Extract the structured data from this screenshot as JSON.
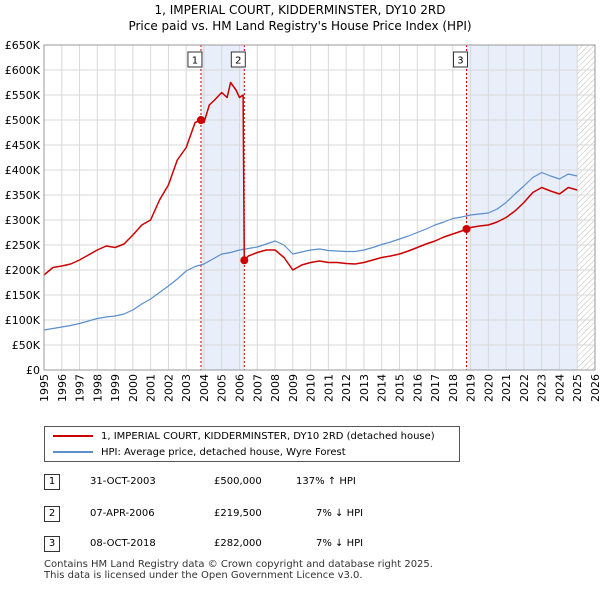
{
  "title_line1": "1, IMPERIAL COURT, KIDDERMINSTER, DY10 2RD",
  "title_line2": "Price paid vs. HM Land Registry's House Price Index (HPI)",
  "colors": {
    "price": "#cc0000",
    "hpi": "#5b8fcc",
    "shade": "#e8eefa",
    "grid": "#d8d8d8",
    "vline": "#cc0000"
  },
  "chart_data": {
    "type": "line",
    "title": "1, IMPERIAL COURT, KIDDERMINSTER, DY10 2RD — Price paid vs. HM Land Registry's House Price Index (HPI)",
    "xlabel": "",
    "ylabel": "",
    "xlim": [
      1995,
      2026
    ],
    "ylim": [
      0,
      650000
    ],
    "yticks": [
      0,
      50000,
      100000,
      150000,
      200000,
      250000,
      300000,
      350000,
      400000,
      450000,
      500000,
      550000,
      600000,
      650000
    ],
    "ytick_labels": [
      "£0",
      "£50K",
      "£100K",
      "£150K",
      "£200K",
      "£250K",
      "£300K",
      "£350K",
      "£400K",
      "£450K",
      "£500K",
      "£550K",
      "£600K",
      "£650K"
    ],
    "xticks": [
      1995,
      1996,
      1997,
      1998,
      1999,
      2000,
      2001,
      2002,
      2003,
      2004,
      2005,
      2006,
      2007,
      2008,
      2009,
      2010,
      2011,
      2012,
      2013,
      2014,
      2015,
      2016,
      2017,
      2018,
      2019,
      2020,
      2021,
      2022,
      2023,
      2024,
      2025,
      2026
    ],
    "shaded_ranges": [
      [
        2003.83,
        2006.27
      ],
      [
        2018.77,
        2025.0
      ]
    ],
    "future_hatch_from": 2025.0,
    "series": [
      {
        "name": "1, IMPERIAL COURT, KIDDERMINSTER, DY10 2RD (detached house)",
        "color": "#cc0000",
        "x": [
          1995.0,
          1995.5,
          1996.0,
          1996.5,
          1997.0,
          1997.5,
          1998.0,
          1998.5,
          1999.0,
          1999.5,
          2000.0,
          2000.5,
          2001.0,
          2001.5,
          2002.0,
          2002.5,
          2003.0,
          2003.5,
          2003.83,
          2004.0,
          2004.3,
          2004.6,
          2005.0,
          2005.3,
          2005.5,
          2005.8,
          2006.0,
          2006.2,
          2006.27,
          2006.5,
          2007.0,
          2007.5,
          2008.0,
          2008.5,
          2009.0,
          2009.5,
          2010.0,
          2010.5,
          2011.0,
          2011.5,
          2012.0,
          2012.5,
          2013.0,
          2013.5,
          2014.0,
          2014.5,
          2015.0,
          2015.5,
          2016.0,
          2016.5,
          2017.0,
          2017.5,
          2018.0,
          2018.5,
          2018.77,
          2019.0,
          2019.5,
          2020.0,
          2020.5,
          2021.0,
          2021.5,
          2022.0,
          2022.5,
          2023.0,
          2023.5,
          2024.0,
          2024.5,
          2025.0
        ],
        "values": [
          190000,
          205000,
          208000,
          212000,
          220000,
          230000,
          240000,
          248000,
          245000,
          252000,
          270000,
          290000,
          300000,
          340000,
          370000,
          420000,
          445000,
          495000,
          500000,
          495000,
          530000,
          540000,
          555000,
          545000,
          575000,
          560000,
          545000,
          550000,
          219500,
          228000,
          235000,
          240000,
          240000,
          225000,
          200000,
          210000,
          215000,
          218000,
          215000,
          215000,
          213000,
          212000,
          215000,
          220000,
          225000,
          228000,
          232000,
          238000,
          245000,
          252000,
          258000,
          266000,
          272000,
          278000,
          282000,
          285000,
          288000,
          290000,
          296000,
          305000,
          318000,
          335000,
          355000,
          365000,
          358000,
          352000,
          365000,
          360000
        ]
      },
      {
        "name": "HPI: Average price, detached house, Wyre Forest",
        "color": "#5b8fcc",
        "x": [
          1995.0,
          1995.5,
          1996.0,
          1996.5,
          1997.0,
          1997.5,
          1998.0,
          1998.5,
          1999.0,
          1999.5,
          2000.0,
          2000.5,
          2001.0,
          2001.5,
          2002.0,
          2002.5,
          2003.0,
          2003.5,
          2004.0,
          2004.5,
          2005.0,
          2005.5,
          2006.0,
          2006.5,
          2007.0,
          2007.5,
          2008.0,
          2008.5,
          2009.0,
          2009.5,
          2010.0,
          2010.5,
          2011.0,
          2011.5,
          2012.0,
          2012.5,
          2013.0,
          2013.5,
          2014.0,
          2014.5,
          2015.0,
          2015.5,
          2016.0,
          2016.5,
          2017.0,
          2017.5,
          2018.0,
          2018.5,
          2019.0,
          2019.5,
          2020.0,
          2020.5,
          2021.0,
          2021.5,
          2022.0,
          2022.5,
          2023.0,
          2023.5,
          2024.0,
          2024.5,
          2025.0
        ],
        "values": [
          80000,
          83000,
          86000,
          89000,
          93000,
          98000,
          103000,
          106000,
          108000,
          112000,
          120000,
          132000,
          142000,
          155000,
          168000,
          182000,
          198000,
          207000,
          212000,
          222000,
          232000,
          235000,
          240000,
          243000,
          246000,
          252000,
          258000,
          250000,
          232000,
          236000,
          240000,
          242000,
          239000,
          238000,
          237000,
          237000,
          240000,
          245000,
          251000,
          256000,
          262000,
          268000,
          275000,
          282000,
          290000,
          296000,
          303000,
          306000,
          310000,
          312000,
          314000,
          322000,
          335000,
          352000,
          368000,
          385000,
          395000,
          388000,
          382000,
          392000,
          388000
        ]
      }
    ],
    "annotations": [
      {
        "label": "1",
        "x": 2003.83,
        "value": 500000
      },
      {
        "label": "2",
        "x": 2006.27,
        "value": 219500
      },
      {
        "label": "3",
        "x": 2018.77,
        "value": 282000
      }
    ]
  },
  "legend": {
    "price_label": "1, IMPERIAL COURT, KIDDERMINSTER, DY10 2RD (detached house)",
    "hpi_label": "HPI: Average price, detached house, Wyre Forest"
  },
  "transactions": [
    {
      "num": "1",
      "date": "31-OCT-2003",
      "price": "£500,000",
      "hpi": "137% ↑ HPI"
    },
    {
      "num": "2",
      "date": "07-APR-2006",
      "price": "£219,500",
      "hpi": "7% ↓ HPI"
    },
    {
      "num": "3",
      "date": "08-OCT-2018",
      "price": "£282,000",
      "hpi": "7% ↓ HPI"
    }
  ],
  "footer": {
    "line1": "Contains HM Land Registry data © Crown copyright and database right 2025.",
    "line2": "This data is licensed under the Open Government Licence v3.0."
  }
}
